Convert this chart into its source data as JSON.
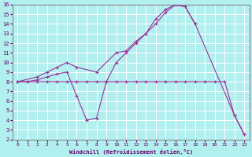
{
  "xlabel": "Windchill (Refroidissement éolien,°C)",
  "bg_color": "#b2efef",
  "line_color": "#993399",
  "grid_color": "#ffffff",
  "xlim": [
    -0.5,
    23.5
  ],
  "ylim": [
    2,
    16
  ],
  "xticks": [
    0,
    1,
    2,
    3,
    4,
    5,
    6,
    7,
    8,
    9,
    10,
    11,
    12,
    13,
    14,
    15,
    16,
    17,
    18,
    19,
    20,
    21,
    22,
    23
  ],
  "yticks": [
    2,
    3,
    4,
    5,
    6,
    7,
    8,
    9,
    10,
    11,
    12,
    13,
    14,
    15,
    16
  ],
  "line_flat_x": [
    0,
    1,
    2,
    3,
    4,
    5,
    6,
    7,
    8,
    9,
    10,
    11,
    12,
    13,
    14,
    15,
    16,
    17,
    18,
    19,
    20,
    21,
    22,
    23
  ],
  "line_flat_y": [
    8,
    8,
    8,
    8,
    8,
    8,
    8,
    8,
    8,
    8,
    8,
    8,
    8,
    8,
    8,
    8,
    8,
    8,
    8,
    8,
    8,
    8,
    4.5,
    2.5
  ],
  "line_upper_x": [
    0,
    2,
    3,
    4,
    5,
    6,
    8,
    10,
    11,
    12,
    13,
    14,
    15,
    16,
    17,
    18,
    22,
    23
  ],
  "line_upper_y": [
    8,
    8.5,
    9,
    9.5,
    10,
    9.5,
    9,
    11,
    11.2,
    12.2,
    13,
    14.5,
    15.5,
    16,
    15.8,
    14,
    4.5,
    2.5
  ],
  "line_lower_x": [
    0,
    1,
    2,
    3,
    4,
    5,
    6,
    7,
    8,
    9,
    10,
    11,
    12,
    13,
    14,
    15,
    16,
    17,
    18
  ],
  "line_lower_y": [
    8,
    8,
    8.2,
    8.5,
    8.8,
    9,
    6.5,
    4,
    4.2,
    8,
    10,
    11,
    12,
    13,
    14,
    15.2,
    16,
    15.8,
    14
  ]
}
